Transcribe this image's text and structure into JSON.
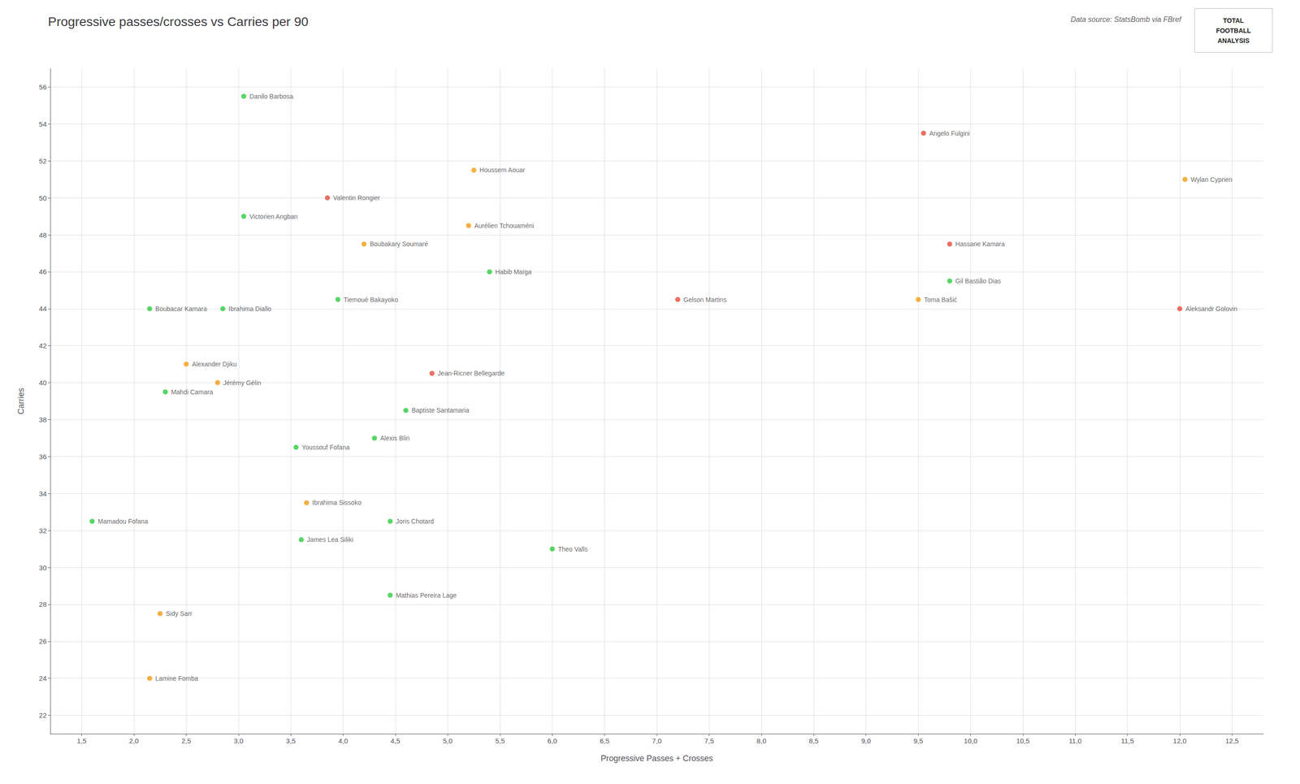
{
  "chart_data": {
    "type": "scatter",
    "title": "Progressive passes/crosses vs Carries per 90",
    "xlabel": "Progressive Passes + Crosses",
    "ylabel": "Carries",
    "annotations": [
      "Data source: StatsBomb via FBref",
      "TOTAL\nFOOTBALL\nANALYSIS"
    ],
    "xlim": [
      1.2,
      12.8
    ],
    "ylim": [
      21,
      57
    ],
    "xticks": [
      {
        "value": 1.5,
        "label": "1,5"
      },
      {
        "value": 2.0,
        "label": "2,0"
      },
      {
        "value": 2.5,
        "label": "2,5"
      },
      {
        "value": 3.0,
        "label": "3,0"
      },
      {
        "value": 3.5,
        "label": "3,5"
      },
      {
        "value": 4.0,
        "label": "4,0"
      },
      {
        "value": 4.5,
        "label": "4,5"
      },
      {
        "value": 5.0,
        "label": "5,0"
      },
      {
        "value": 5.5,
        "label": "5,5"
      },
      {
        "value": 6.0,
        "label": "6,0"
      },
      {
        "value": 6.5,
        "label": "6,5"
      },
      {
        "value": 7.0,
        "label": "7,0"
      },
      {
        "value": 7.5,
        "label": "7,5"
      },
      {
        "value": 8.0,
        "label": "8,0"
      },
      {
        "value": 8.5,
        "label": "8,5"
      },
      {
        "value": 9.0,
        "label": "9,0"
      },
      {
        "value": 9.5,
        "label": "9,5"
      },
      {
        "value": 10.0,
        "label": "10,0"
      },
      {
        "value": 10.5,
        "label": "10,5"
      },
      {
        "value": 11.0,
        "label": "11,0"
      },
      {
        "value": 11.5,
        "label": "11,5"
      },
      {
        "value": 12.0,
        "label": "12,0"
      },
      {
        "value": 12.5,
        "label": "12,5"
      }
    ],
    "yticks": [
      22,
      24,
      26,
      28,
      30,
      32,
      34,
      36,
      38,
      40,
      42,
      44,
      46,
      48,
      50,
      52,
      54,
      56
    ],
    "grid": true,
    "labels": [
      "Danilo Barbosa",
      "Angelo Fulgini",
      "Houssem Aouar",
      "Wylan Cyprien",
      "Valentin Rongier",
      "Victorien Angban",
      "Aurélien Tchouaméni",
      "Boubakary Soumaré",
      "Hassane Kamara",
      "Habib Maïga",
      "Gil Bastião Dias",
      "Gelson Martins",
      "Toma Bašić",
      "Tiemoué Bakayoko",
      "Boubacar Kamara",
      "Ibrahima Diallo",
      "Aleksandr Golovin",
      "Alexander Djiku",
      "Jean-Ricner Bellegarde",
      "Jérémy Gélin",
      "Mahdi Camara",
      "Baptiste Santamaria",
      "Alexis Blin",
      "Youssouf Fofana",
      "Ibrahima Sissoko",
      "Joris Chotard",
      "Mamadou Fofana",
      "James Lea Siliki",
      "Theo Valls",
      "Mathias Pereira Lage",
      "Sidy Sarr",
      "Lamine Fomba"
    ],
    "x": [
      3.05,
      9.55,
      5.25,
      12.05,
      3.85,
      3.05,
      5.2,
      4.2,
      9.8,
      5.4,
      9.8,
      7.2,
      9.5,
      3.95,
      2.15,
      2.85,
      12.0,
      2.5,
      4.85,
      2.8,
      2.3,
      4.6,
      4.3,
      3.55,
      3.65,
      4.45,
      1.6,
      3.6,
      6.0,
      4.45,
      2.25,
      2.15
    ],
    "values": [
      55.5,
      53.5,
      51.5,
      51.0,
      50.0,
      49.0,
      48.5,
      47.5,
      47.5,
      46.0,
      45.5,
      44.5,
      44.5,
      44.5,
      44.0,
      44.0,
      44.0,
      41.0,
      40.5,
      40.0,
      39.5,
      38.5,
      37.0,
      36.5,
      33.5,
      32.5,
      32.5,
      31.5,
      31.0,
      28.5,
      27.5,
      24.0
    ],
    "colors": [
      "#2ecc40",
      "#e74c3c",
      "#f39c12",
      "#f39c12",
      "#e74c3c",
      "#2ecc40",
      "#f39c12",
      "#f39c12",
      "#e74c3c",
      "#2ecc40",
      "#2ecc40",
      "#e74c3c",
      "#f39c12",
      "#2ecc40",
      "#2ecc40",
      "#2ecc40",
      "#e74c3c",
      "#f39c12",
      "#e74c3c",
      "#f39c12",
      "#2ecc40",
      "#2ecc40",
      "#2ecc40",
      "#2ecc40",
      "#f39c12",
      "#2ecc40",
      "#2ecc40",
      "#2ecc40",
      "#2ecc40",
      "#2ecc40",
      "#f39c12",
      "#f39c12"
    ]
  }
}
